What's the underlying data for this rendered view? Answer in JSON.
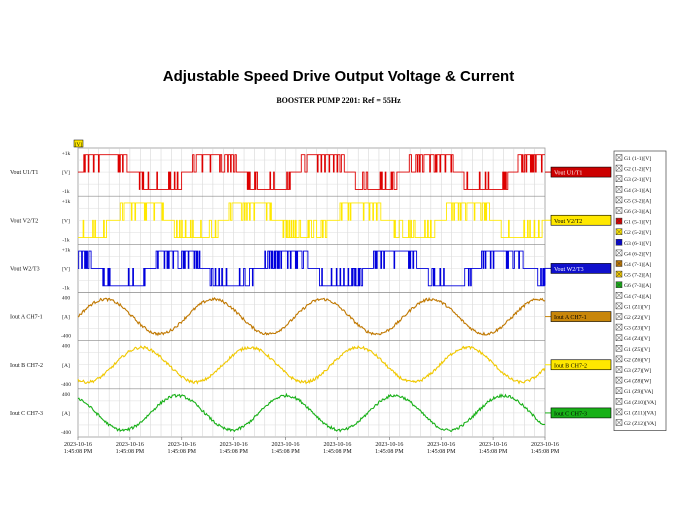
{
  "title": "Adjustable Speed Drive Output Voltage & Current",
  "subtitle": "BOOSTER PUMP 2201: Ref = 55Hz",
  "top_marker": "[V]",
  "chart_data": {
    "type": "line",
    "x_tick_labels": [
      [
        "2023-10-16",
        "1:45:08 PM"
      ],
      [
        "2023-10-16",
        "1:45:08 PM"
      ],
      [
        "2023-10-16",
        "1:45:08 PM"
      ],
      [
        "2023-10-16",
        "1:45:08 PM"
      ],
      [
        "2023-10-16",
        "1:45:08 PM"
      ],
      [
        "2023-10-16",
        "1:45:08 PM"
      ],
      [
        "2023-10-16",
        "1:45:08 PM"
      ],
      [
        "2023-10-16",
        "1:45:08 PM"
      ],
      [
        "2023-10-16",
        "1:45:08 PM"
      ],
      [
        "2023-10-16",
        "1:45:08 PM"
      ]
    ],
    "channels": [
      {
        "label": "Vout U1/T1",
        "tag": "Vout U1/T1",
        "kind": "pwm",
        "color": "#dd0000",
        "tag_color": "#cc0000",
        "tag_text_color": "#ffffff",
        "yticks": [
          "+1k",
          "[V]",
          "-1k"
        ],
        "cycles": 4.3,
        "phase": 0
      },
      {
        "label": "Vout V2/T2",
        "tag": "Vout V2/T2",
        "kind": "pwm",
        "color": "#ffe800",
        "tag_color": "#ffe800",
        "tag_text_color": "#000000",
        "yticks": [
          "+1k",
          "[V]",
          "-1k"
        ],
        "cycles": 4.3,
        "phase": 120
      },
      {
        "label": "Vout W2/T3",
        "tag": "Vout W2/T3",
        "kind": "pwm",
        "color": "#0000dd",
        "tag_color": "#1010cc",
        "tag_text_color": "#ffffff",
        "yticks": [
          "+1k",
          "[V]",
          "-1k"
        ],
        "cycles": 4.3,
        "phase": 240
      },
      {
        "label": "Iout A CH7-1",
        "tag": "Iout A CH7-1",
        "kind": "sine",
        "color": "#c07800",
        "tag_color": "#c8860a",
        "tag_text_color": "#000000",
        "yticks": [
          "400",
          "[A]",
          "-400"
        ],
        "cycles": 4.3,
        "phase": 0
      },
      {
        "label": "Iout B CH7-2",
        "tag": "Iout B CH7-2",
        "kind": "sine",
        "color": "#f0c800",
        "tag_color": "#ffe800",
        "tag_text_color": "#000000",
        "yticks": [
          "400",
          "[A]",
          "-400"
        ],
        "cycles": 4.3,
        "phase": 120
      },
      {
        "label": "Iout C CH7-3",
        "tag": "Iout C CH7-3",
        "kind": "sine",
        "color": "#18b018",
        "tag_color": "#18b018",
        "tag_text_color": "#000000",
        "yticks": [
          "400",
          "[A]",
          "-400"
        ],
        "cycles": 4.3,
        "phase": 240
      }
    ],
    "legend": [
      {
        "label": "G1 (1-1)[V]",
        "color": "#ffffff"
      },
      {
        "label": "G2 (1-2)[V]",
        "color": "#ffffff"
      },
      {
        "label": "G3 (2-1)[V]",
        "color": "#ffffff"
      },
      {
        "label": "G4 (3-1)[A]",
        "color": "#ffffff"
      },
      {
        "label": "G5 (3-2)[A]",
        "color": "#ffffff"
      },
      {
        "label": "G6 (3-3)[A]",
        "color": "#ffffff"
      },
      {
        "label": "G1 (5-1)[V]",
        "color": "#dd0000"
      },
      {
        "label": "G2 (5-2)[V]",
        "color": "#ffe800"
      },
      {
        "label": "G3 (6-1)[V]",
        "color": "#0000dd"
      },
      {
        "label": "G4 (6-2)[V]",
        "color": "#ffffff"
      },
      {
        "label": "G4 (7-1)[A]",
        "color": "#c07800"
      },
      {
        "label": "G5 (7-2)[A]",
        "color": "#f0c800"
      },
      {
        "label": "G6 (7-3)[A]",
        "color": "#18b018"
      },
      {
        "label": "G4 (7-4)[A]",
        "color": "#ffffff"
      },
      {
        "label": "G1 (Z1)[V]",
        "color": "#ffffff"
      },
      {
        "label": "G2 (Z2)[V]",
        "color": "#ffffff"
      },
      {
        "label": "G3 (Z3)[V]",
        "color": "#ffffff"
      },
      {
        "label": "G4 (Z4)[V]",
        "color": "#ffffff"
      },
      {
        "label": "G1 (Z5)[V]",
        "color": "#ffffff"
      },
      {
        "label": "G2 (Z6)[V]",
        "color": "#ffffff"
      },
      {
        "label": "G3 (Z7)[W]",
        "color": "#ffffff"
      },
      {
        "label": "G4 (Z8)[W]",
        "color": "#ffffff"
      },
      {
        "label": "G1 (Z9)[VA]",
        "color": "#ffffff"
      },
      {
        "label": "G4 (Z10)[VA]",
        "color": "#ffffff"
      },
      {
        "label": "G1 (Z11)[VA]",
        "color": "#ffffff"
      },
      {
        "label": "G2 (Z12)[VA]",
        "color": "#ffffff"
      }
    ]
  }
}
